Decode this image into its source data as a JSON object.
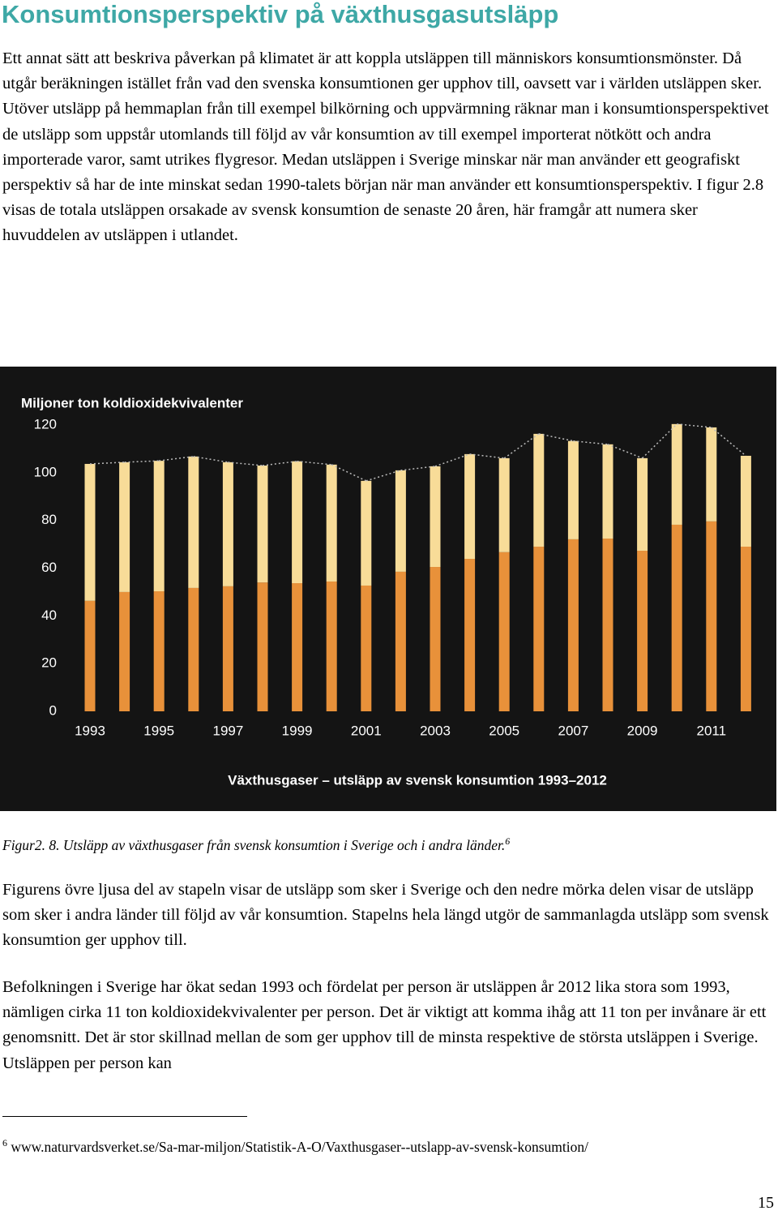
{
  "title": "Konsumtionsperspektiv på växthusgasutsläpp",
  "paragraphs": [
    "Ett annat sätt att beskriva påverkan på klimatet är att koppla utsläppen till människors konsumtionsmönster. Då utgår beräkningen istället från vad den svenska konsumtionen ger upphov till, oavsett var i världen utsläppen sker. Utöver utsläpp på hemmaplan från till exempel bilkörning och uppvärmning räknar man i konsumtionsperspektivet de utsläpp som uppstår utomlands till följd av vår konsumtion av till exempel importerat nötkött och andra importerade varor, samt utrikes flygresor. Medan utsläppen i Sverige minskar när man använder ett geografiskt perspektiv så har de inte minskat sedan 1990-talets början när man använder ett konsumtionsperspektiv. I figur 2.8 visas de totala utsläppen orsakade av svensk konsumtion de senaste 20 åren, här framgår att numera sker huvuddelen av utsläppen i utlandet."
  ],
  "chart_data": {
    "type": "stacked_bar",
    "ylabel": "Miljoner ton koldioxidekvivalenter",
    "title": "Växthusgaser – utsläpp av svensk konsumtion 1993–2012",
    "categories": [
      "1993",
      null,
      "1995",
      null,
      "1997",
      null,
      "1999",
      null,
      "2001",
      null,
      "2003",
      null,
      "2005",
      null,
      "2007",
      null,
      "2009",
      null,
      "2011",
      null
    ],
    "series": [
      {
        "color": "#e8913a",
        "values": [
          46.3,
          50.0,
          50.3,
          51.7,
          52.4,
          54.0,
          53.7,
          54.4,
          52.7,
          58.5,
          60.5,
          63.9,
          66.7,
          69.0,
          72.1,
          72.4,
          67.3,
          78.2,
          79.6,
          69.0
        ]
      },
      {
        "color": "#f8dc98",
        "values": [
          57.4,
          54.4,
          54.7,
          55.1,
          52.0,
          49.0,
          51.1,
          49.0,
          43.9,
          42.5,
          42.2,
          43.9,
          39.4,
          47.3,
          41.2,
          39.5,
          38.8,
          42.2,
          39.4,
          38.1
        ]
      }
    ],
    "ylim": [
      0,
      120
    ],
    "yticks": [
      0,
      20,
      40,
      60,
      80,
      100,
      120
    ],
    "grid": false
  },
  "caption": "Figur2. 8. Utsläpp av växthusgaser från svensk konsumtion i Sverige och i andra länder.",
  "caption_ref": "6",
  "paragraphs_after": [
    "Figurens övre ljusa del av stapeln visar de utsläpp som sker i Sverige och den nedre mörka delen visar de utsläpp som sker i andra länder till följd av vår konsumtion. Stapelns hela längd utgör de sammanlagda utsläpp som svensk konsumtion ger upphov till.",
    "Befolkningen i Sverige har ökat sedan 1993 och fördelat per person är utsläppen år 2012 lika stora som 1993, nämligen cirka 11 ton koldioxidekvivalenter per person. Det är viktigt att komma ihåg att 11 ton per invånare är ett genomsnitt. Det är stor skillnad mellan de som ger upphov till de minsta respektive de största utsläppen i Sverige. Utsläppen per person kan"
  ],
  "footnote": {
    "number": "6",
    "text": "www.naturvardsverket.se/Sa-mar-miljon/Statistik-A-O/Vaxthusgaser--utslapp-av-svensk-konsumtion/"
  },
  "page_number": "15"
}
